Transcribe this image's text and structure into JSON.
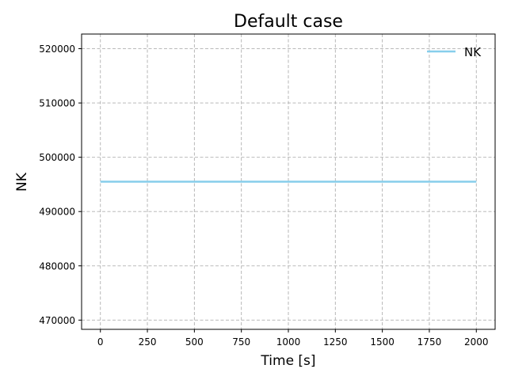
{
  "chart_data": {
    "type": "line",
    "title": "Default case",
    "xlabel": "Time [s]",
    "ylabel": "NK",
    "xlim": [
      -100,
      2100
    ],
    "ylim": [
      468300,
      522700
    ],
    "xticks": [
      0,
      250,
      500,
      750,
      1000,
      1250,
      1500,
      1750,
      2000
    ],
    "yticks": [
      470000,
      480000,
      490000,
      500000,
      510000,
      520000
    ],
    "grid": true,
    "legend_position": "top-right",
    "series": [
      {
        "name": "NK",
        "color": "#87ceeb",
        "x": [
          0,
          2000
        ],
        "y": [
          495500,
          495500
        ]
      }
    ]
  }
}
